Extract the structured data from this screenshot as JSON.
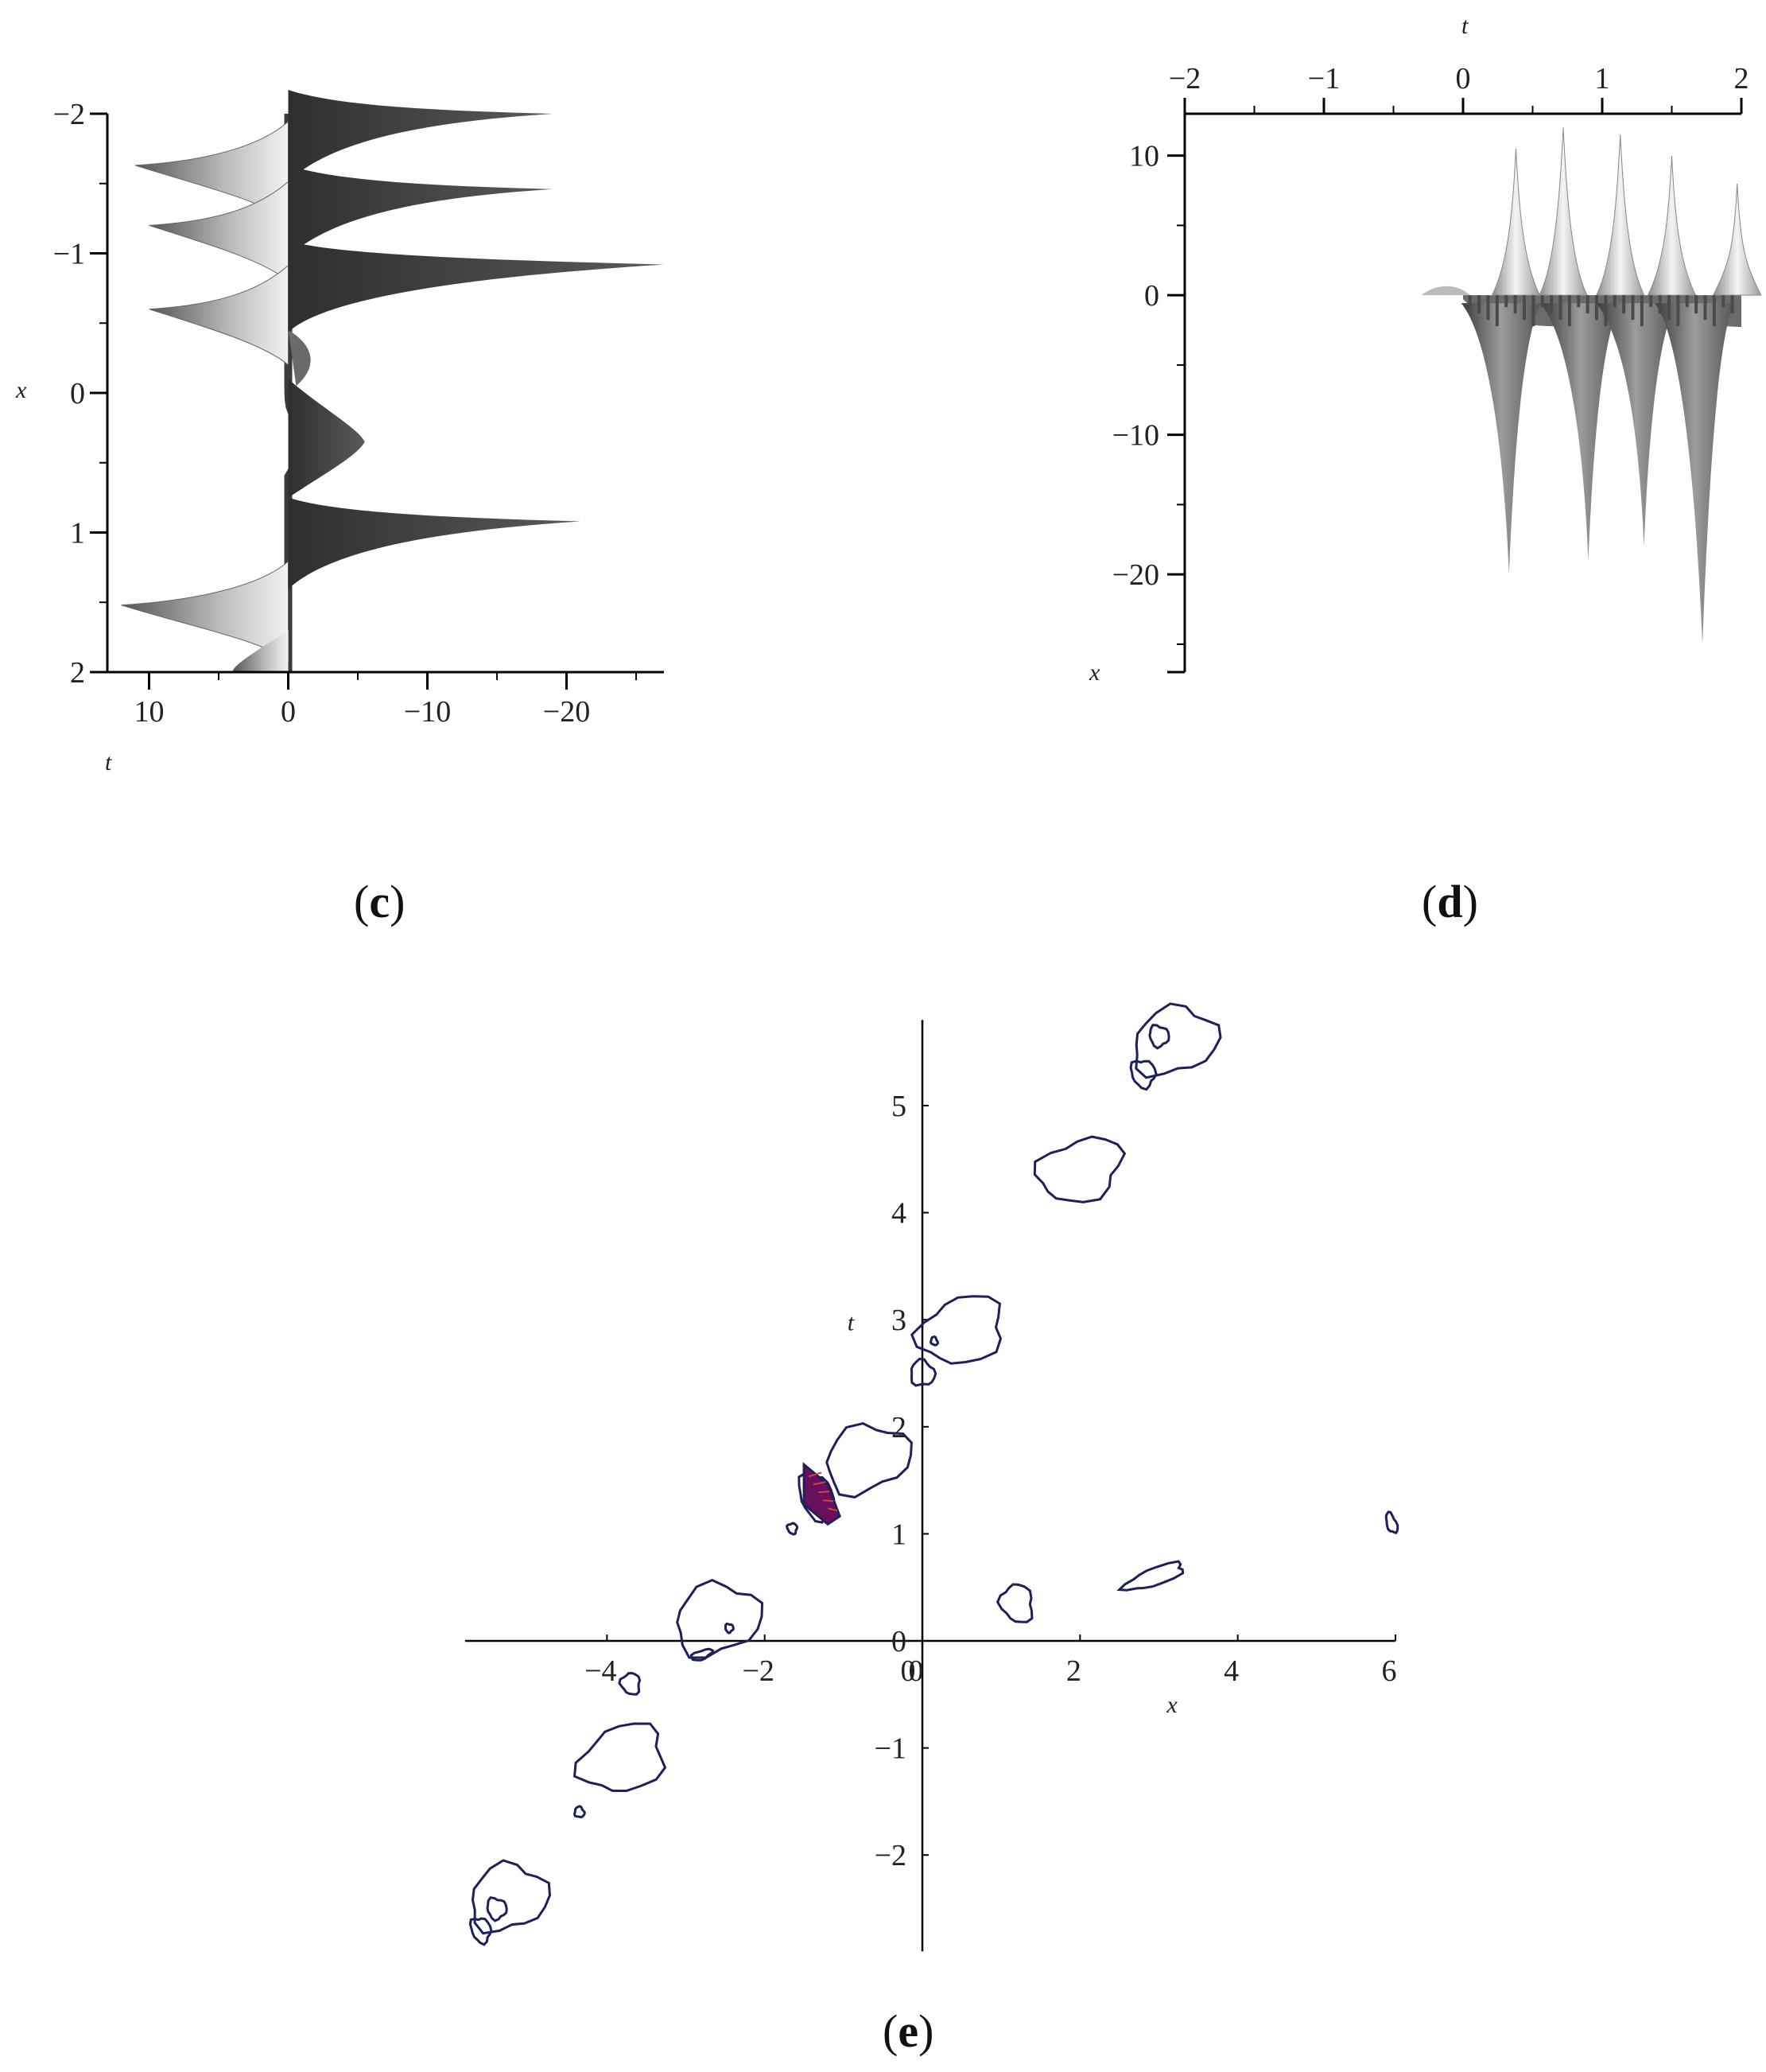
{
  "chart_data": [
    {
      "id": "panel-c",
      "type": "surface",
      "caption_label": "c",
      "xlabel": "t",
      "ylabel": "x",
      "x_ticks": [
        "10",
        "0",
        "−10",
        "−20"
      ],
      "x_tick_values": [
        10,
        0,
        -10,
        -20
      ],
      "y_ticks": [
        "−2",
        "−1",
        "0",
        "1",
        "2"
      ],
      "y_tick_values": [
        -2,
        -1,
        0,
        1,
        2
      ],
      "xlim": [
        13,
        -27
      ],
      "ylim": [
        -2,
        2
      ],
      "spikes": [
        {
          "x": -2.0,
          "t": -19
        },
        {
          "x": -1.46,
          "t": -19
        },
        {
          "x": -0.92,
          "t": -27
        },
        {
          "x": 0.92,
          "t": -21
        }
      ],
      "left_lobes": [
        {
          "x": -1.63,
          "t": 11
        },
        {
          "x": -1.2,
          "t": 10
        },
        {
          "x": -0.6,
          "t": 10
        },
        {
          "x": 1.52,
          "t": 12
        }
      ],
      "colors": {
        "dark": "#3a3a3a",
        "light": "#dcdcdc"
      }
    },
    {
      "id": "panel-d",
      "type": "surface",
      "caption_label": "d",
      "xlabel": "t",
      "ylabel": "x",
      "x_ticks": [
        "−2",
        "−1",
        "0",
        "1",
        "2"
      ],
      "x_tick_values": [
        -2,
        -1,
        0,
        1,
        2
      ],
      "y_ticks": [
        "10",
        "0",
        "−10",
        "−20"
      ],
      "y_tick_values": [
        10,
        0,
        -10,
        -20
      ],
      "xlim": [
        -2,
        2
      ],
      "ylim": [
        13,
        -27
      ],
      "spikes_up": [
        {
          "t": 0.38,
          "value": 10.5
        },
        {
          "t": 0.72,
          "value": 12
        },
        {
          "t": 1.13,
          "value": 11.5
        },
        {
          "t": 1.5,
          "value": 10
        },
        {
          "t": 1.97,
          "value": 8
        }
      ],
      "spikes_down": [
        {
          "t": 0.33,
          "value": -20
        },
        {
          "t": 0.9,
          "value": -19
        },
        {
          "t": 1.3,
          "value": -18
        },
        {
          "t": 1.72,
          "value": -25
        }
      ],
      "colors": {
        "dark": "#444444",
        "light": "#e6e6e6"
      }
    },
    {
      "id": "panel-e",
      "type": "contour",
      "caption_label": "e",
      "xlabel": "x",
      "ylabel": "t",
      "x_ticks": [
        "−4",
        "−2",
        "0",
        "2",
        "4",
        "6"
      ],
      "x_tick_values": [
        -4,
        -2,
        0,
        2,
        4,
        6
      ],
      "y_ticks": [
        "−2",
        "−1",
        "0",
        "1",
        "2",
        "3",
        "4",
        "5"
      ],
      "y_tick_values": [
        -2,
        -1,
        0,
        1,
        2,
        3,
        4,
        5
      ],
      "xlim": [
        -5.8,
        6
      ],
      "ylim": [
        -2.9,
        5.8
      ],
      "contour_colors": {
        "main": "#1f1f5c",
        "dense": "#6a0f5a",
        "accent": "#cc4444"
      },
      "blobs": [
        {
          "cx": 3.2,
          "cy": 5.6,
          "rx": 0.55,
          "ry": 0.3
        },
        {
          "cx": 3.0,
          "cy": 5.65,
          "rx": 0.12,
          "ry": 0.1
        },
        {
          "cx": 2.8,
          "cy": 5.3,
          "rx": 0.15,
          "ry": 0.13
        },
        {
          "cx": 2.0,
          "cy": 4.4,
          "rx": 0.55,
          "ry": 0.28
        },
        {
          "cx": 0.5,
          "cy": 2.9,
          "rx": 0.55,
          "ry": 0.3
        },
        {
          "cx": 0.15,
          "cy": 2.8,
          "rx": 0.04,
          "ry": 0.04
        },
        {
          "cx": 0.0,
          "cy": 2.5,
          "rx": 0.15,
          "ry": 0.12
        },
        {
          "cx": -0.7,
          "cy": 1.7,
          "rx": 0.55,
          "ry": 0.3
        },
        {
          "cx": -1.35,
          "cy": 1.35,
          "rx": 0.2,
          "ry": 0.22
        },
        {
          "cx": -1.65,
          "cy": 1.05,
          "rx": 0.06,
          "ry": 0.05
        },
        {
          "cx": 1.2,
          "cy": 0.35,
          "rx": 0.2,
          "ry": 0.18
        },
        {
          "cx": 2.95,
          "cy": 0.6,
          "rx": 0.4,
          "ry": 0.08
        },
        {
          "cx": 5.95,
          "cy": 1.1,
          "rx": 0.06,
          "ry": 0.1
        },
        {
          "cx": -2.6,
          "cy": 0.2,
          "rx": 0.55,
          "ry": 0.32
        },
        {
          "cx": -2.45,
          "cy": 0.12,
          "rx": 0.05,
          "ry": 0.04
        },
        {
          "cx": -2.8,
          "cy": -0.13,
          "rx": 0.14,
          "ry": 0.04
        },
        {
          "cx": -3.7,
          "cy": -0.4,
          "rx": 0.12,
          "ry": 0.1
        },
        {
          "cx": -3.8,
          "cy": -1.1,
          "rx": 0.55,
          "ry": 0.3
        },
        {
          "cx": -4.35,
          "cy": -1.6,
          "rx": 0.06,
          "ry": 0.05
        },
        {
          "cx": -5.25,
          "cy": -2.4,
          "rx": 0.5,
          "ry": 0.3
        },
        {
          "cx": -5.4,
          "cy": -2.5,
          "rx": 0.12,
          "ry": 0.1
        },
        {
          "cx": -5.6,
          "cy": -2.7,
          "rx": 0.12,
          "ry": 0.12
        }
      ]
    }
  ]
}
